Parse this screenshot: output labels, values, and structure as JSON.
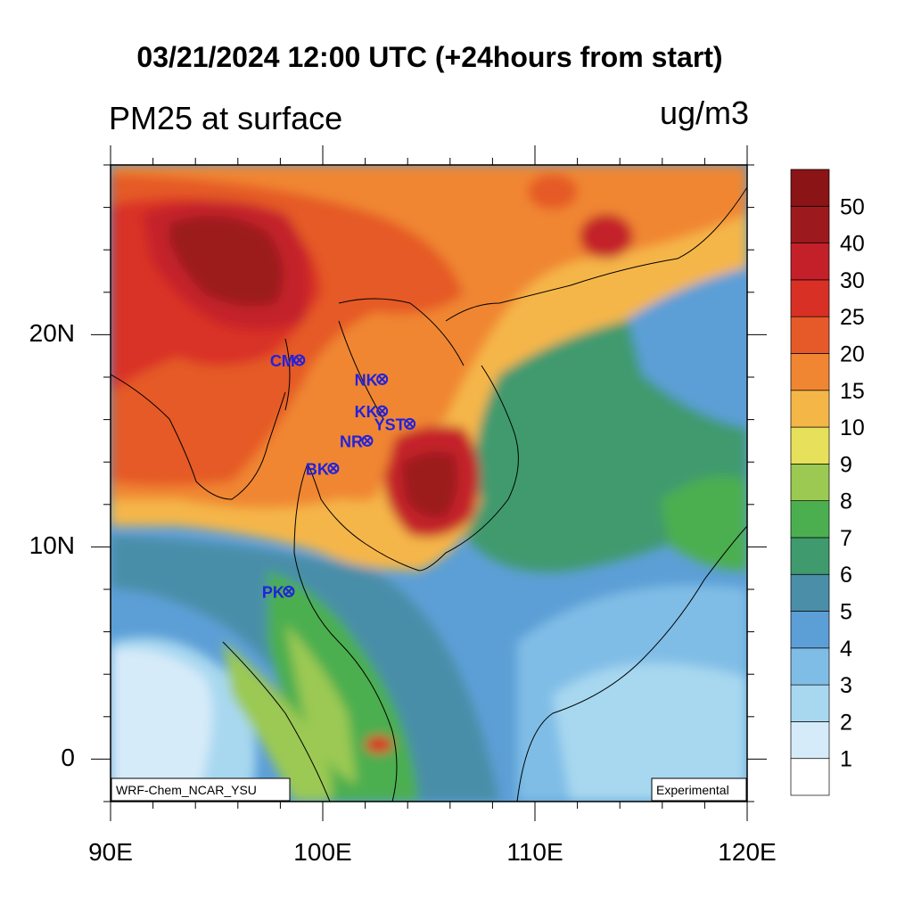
{
  "title": "03/21/2024 12:00 UTC (+24hours from start)",
  "field_label": "PM25 at surface",
  "units": "ug/m3",
  "model_label": "WRF-Chem_NCAR_YSU",
  "status_label": "Experimental",
  "axes": {
    "lon_labels": [
      "90E",
      "100E",
      "110E",
      "120E"
    ],
    "lat_labels": [
      "20N",
      "10N",
      "0"
    ]
  },
  "colorbar": {
    "levels": [
      "1",
      "2",
      "3",
      "4",
      "5",
      "6",
      "7",
      "8",
      "9",
      "10",
      "15",
      "20",
      "25",
      "30",
      "40",
      "50"
    ],
    "colors": [
      "#ffffff",
      "#d6ebf9",
      "#a8d8f0",
      "#80bde6",
      "#5c9fd6",
      "#4a8ea8",
      "#3f9a6e",
      "#4caf4f",
      "#9bc952",
      "#e6e05a",
      "#f5b648",
      "#f08632",
      "#e55a28",
      "#d93025",
      "#c4202a",
      "#9c1a1e",
      "#8a1416"
    ]
  },
  "stations": [
    {
      "name": "CM",
      "lon": 98.9,
      "lat": 18.8
    },
    {
      "name": "NK",
      "lon": 102.8,
      "lat": 17.9
    },
    {
      "name": "KK",
      "lon": 102.8,
      "lat": 16.4
    },
    {
      "name": "YST",
      "lon": 104.1,
      "lat": 15.8
    },
    {
      "name": "NR",
      "lon": 102.1,
      "lat": 15.0
    },
    {
      "name": "BK",
      "lon": 100.5,
      "lat": 13.7
    },
    {
      "name": "PK",
      "lon": 98.4,
      "lat": 7.9
    }
  ]
}
